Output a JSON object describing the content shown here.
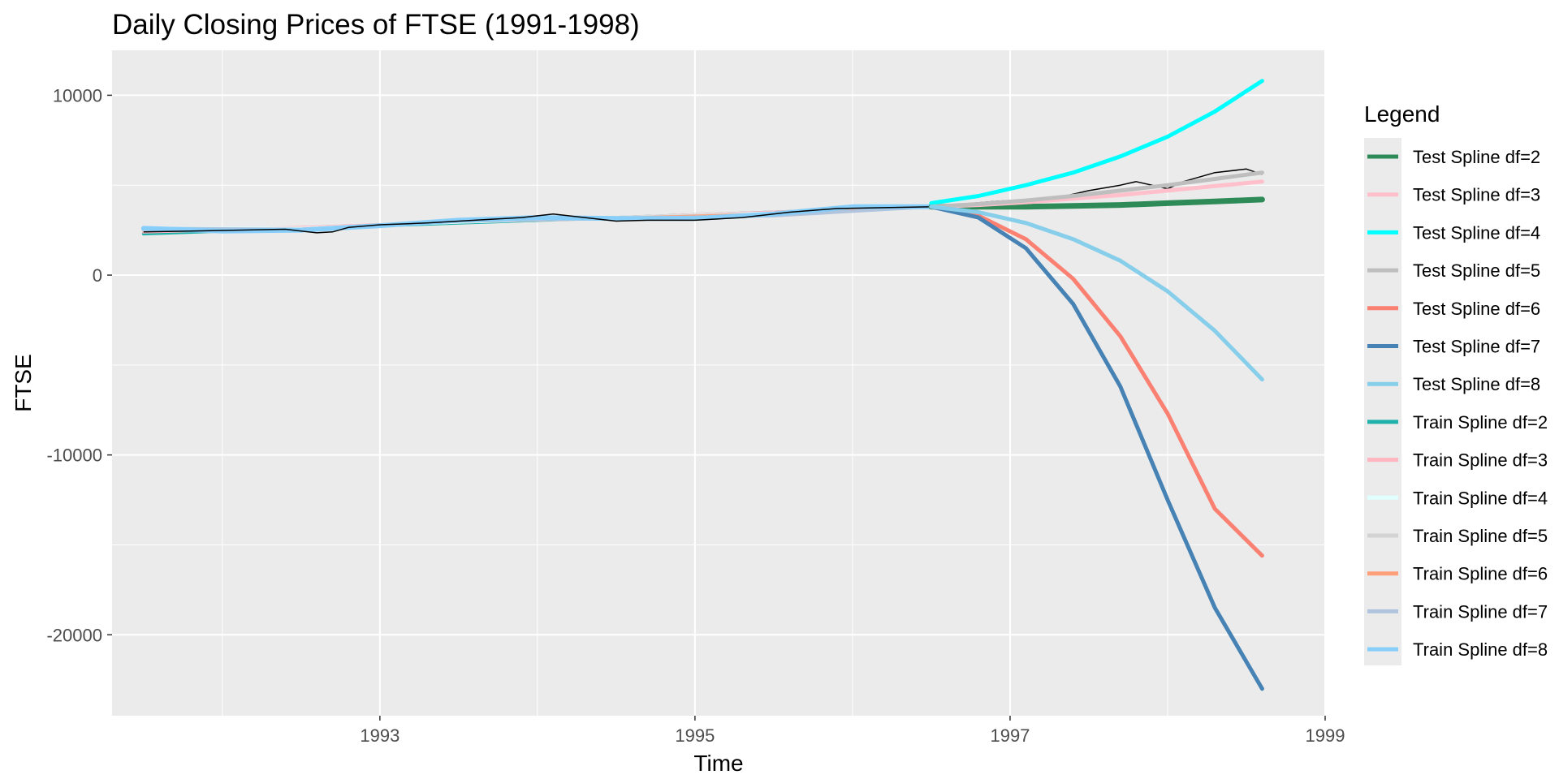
{
  "chart_data": {
    "type": "line",
    "title": "Daily Closing Prices of FTSE (1991-1998)",
    "xlabel": "Time",
    "ylabel": "FTSE",
    "xlim": [
      1991.3,
      1999.0
    ],
    "ylim": [
      -24500,
      12500
    ],
    "x_ticks": [
      1993,
      1995,
      1997,
      1999
    ],
    "x_tick_labels": [
      "1993",
      "1995",
      "1997",
      "1999"
    ],
    "y_ticks": [
      10000,
      0,
      -10000,
      -20000
    ],
    "y_tick_labels": [
      "10000",
      "0",
      "-10000",
      "-20000"
    ],
    "grid": true,
    "legend_position": "right",
    "legend_title": "Legend",
    "observed": {
      "color": "#000000",
      "x": [
        1991.5,
        1991.8,
        1992.1,
        1992.4,
        1992.6,
        1992.7,
        1992.8,
        1993.0,
        1993.3,
        1993.6,
        1993.9,
        1994.1,
        1994.3,
        1994.5,
        1994.7,
        1995.0,
        1995.3,
        1995.6,
        1995.9,
        1996.2,
        1996.5,
        1996.7,
        1996.9,
        1997.1,
        1997.3,
        1997.5,
        1997.7,
        1997.8,
        1998.0,
        1998.1,
        1998.3,
        1998.5,
        1998.6
      ],
      "y": [
        2400,
        2450,
        2500,
        2550,
        2350,
        2400,
        2650,
        2800,
        2900,
        3050,
        3200,
        3400,
        3200,
        3000,
        3050,
        3050,
        3200,
        3500,
        3700,
        3750,
        3800,
        3950,
        4100,
        4200,
        4300,
        4700,
        5000,
        5200,
        4800,
        5200,
        5700,
        5900,
        5600
      ]
    },
    "series": [
      {
        "name": "Test Spline df=2",
        "color": "#2e8b57",
        "x": [
          1996.5,
          1996.8,
          1997.1,
          1997.4,
          1997.7,
          1998.0,
          1998.3,
          1998.6
        ],
        "y": [
          3800,
          3800,
          3800,
          3850,
          3900,
          4000,
          4100,
          4200
        ]
      },
      {
        "name": "Test Spline df=3",
        "color": "#ffc0cb",
        "x": [
          1996.5,
          1996.8,
          1997.1,
          1997.4,
          1997.7,
          1998.0,
          1998.3,
          1998.6
        ],
        "y": [
          3800,
          3900,
          4050,
          4250,
          4450,
          4700,
          4950,
          5200
        ]
      },
      {
        "name": "Test Spline df=4",
        "color": "#00ffff",
        "x": [
          1996.5,
          1996.8,
          1997.1,
          1997.4,
          1997.7,
          1998.0,
          1998.3,
          1998.6
        ],
        "y": [
          4000,
          4400,
          5000,
          5700,
          6600,
          7700,
          9100,
          10800
        ]
      },
      {
        "name": "Test Spline df=5",
        "color": "#bebebe",
        "x": [
          1996.5,
          1996.8,
          1997.1,
          1997.4,
          1997.7,
          1998.0,
          1998.3,
          1998.6
        ],
        "y": [
          3800,
          3950,
          4150,
          4400,
          4700,
          5000,
          5350,
          5700
        ]
      },
      {
        "name": "Test Spline df=6",
        "color": "#fa8072",
        "x": [
          1996.5,
          1996.8,
          1997.1,
          1997.4,
          1997.7,
          1998.0,
          1998.3,
          1998.6
        ],
        "y": [
          3800,
          3300,
          2000,
          -200,
          -3400,
          -7700,
          -13000,
          -15600
        ]
      },
      {
        "name": "Test Spline df=7",
        "color": "#4682b4",
        "x": [
          1996.5,
          1996.8,
          1997.1,
          1997.4,
          1997.7,
          1998.0,
          1998.3,
          1998.6
        ],
        "y": [
          3800,
          3200,
          1500,
          -1600,
          -6200,
          -12500,
          -18500,
          -23000
        ]
      },
      {
        "name": "Test Spline df=8",
        "color": "#87ceeb",
        "x": [
          1996.5,
          1996.8,
          1997.1,
          1997.4,
          1997.7,
          1998.0,
          1998.3,
          1998.6
        ],
        "y": [
          3800,
          3500,
          2900,
          2000,
          800,
          -900,
          -3100,
          -5800
        ]
      },
      {
        "name": "Train Spline df=2",
        "color": "#20b2aa",
        "x": [
          1991.5,
          1992.5,
          1993.5,
          1994.5,
          1995.5,
          1996.5
        ],
        "y": [
          2300,
          2600,
          2900,
          3200,
          3500,
          3800
        ]
      },
      {
        "name": "Train Spline df=3",
        "color": "#ffb6c1",
        "x": [
          1991.5,
          1992.5,
          1993.5,
          1994.5,
          1995.5,
          1996.5
        ],
        "y": [
          2400,
          2650,
          2950,
          3200,
          3500,
          3800
        ]
      },
      {
        "name": "Train Spline df=4",
        "color": "#e0ffff",
        "x": [
          1991.5,
          1992.5,
          1993.5,
          1994.5,
          1995.5,
          1996.5
        ],
        "y": [
          2600,
          2600,
          2950,
          3200,
          3450,
          3800
        ]
      },
      {
        "name": "Train Spline df=5",
        "color": "#d3d3d3",
        "x": [
          1991.5,
          1992.5,
          1993.5,
          1994.5,
          1995.5,
          1996.5
        ],
        "y": [
          2500,
          2550,
          3000,
          3200,
          3400,
          3800
        ]
      },
      {
        "name": "Train Spline df=6",
        "color": "#ffa07a",
        "x": [
          1991.5,
          1992.5,
          1993.5,
          1994.5,
          1995.5,
          1996.5
        ],
        "y": [
          2550,
          2550,
          3000,
          3150,
          3400,
          3800
        ]
      },
      {
        "name": "Train Spline df=7",
        "color": "#b0c4de",
        "x": [
          1991.5,
          1992.5,
          1993.5,
          1994.5,
          1995.5,
          1996.5
        ],
        "y": [
          2600,
          2550,
          3000,
          3150,
          3300,
          3800
        ]
      },
      {
        "name": "Train Spline df=8",
        "color": "#87cefa",
        "x": [
          1991.5,
          1992.0,
          1992.5,
          1993.0,
          1993.5,
          1994.0,
          1994.5,
          1995.0,
          1995.5,
          1996.0,
          1996.5
        ],
        "y": [
          2600,
          2450,
          2500,
          2750,
          3050,
          3200,
          3150,
          3150,
          3400,
          3800,
          3800
        ]
      }
    ]
  }
}
